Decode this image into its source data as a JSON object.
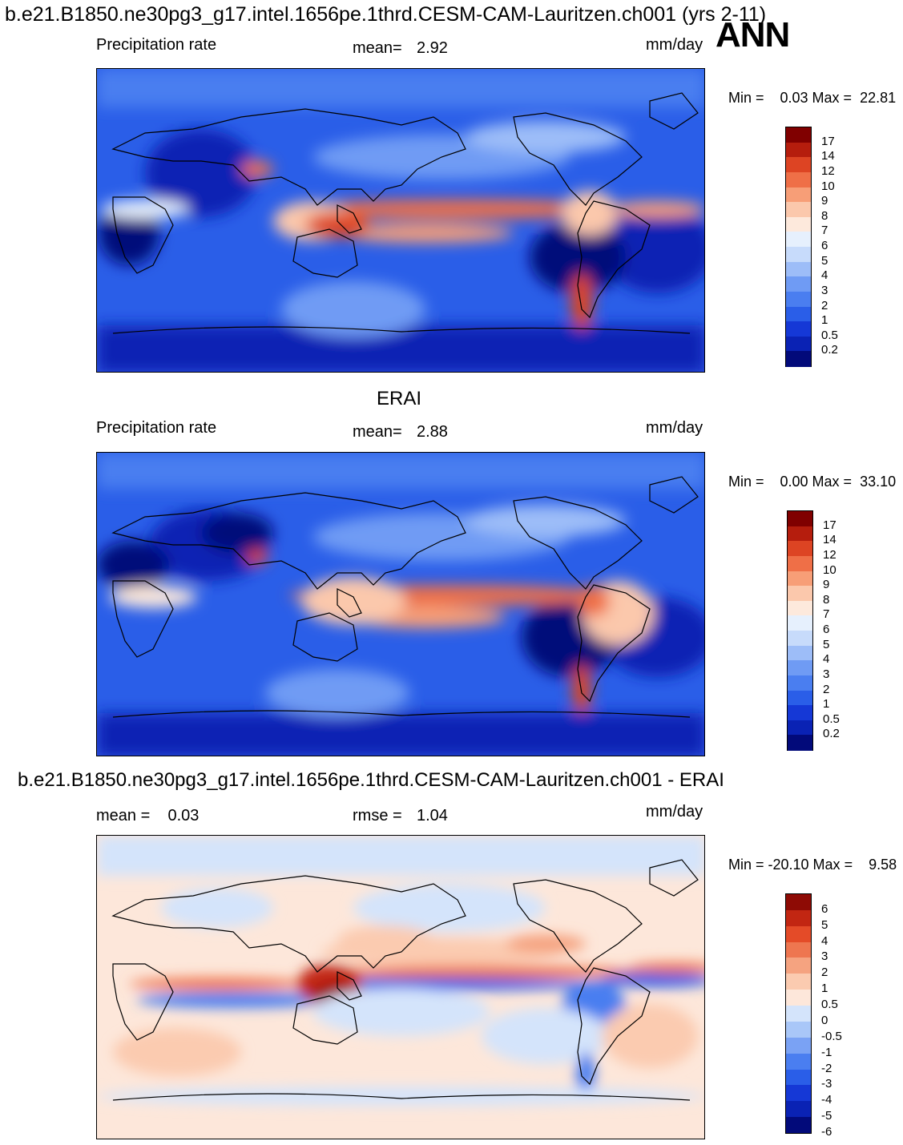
{
  "header": {
    "title": "b.e21.B1850.ne30pg3_g17.intel.1656pe.1thrd.CESM-CAM-Lauritzen.ch001 (yrs 2-11)",
    "season": "ANN"
  },
  "chart_data": [
    {
      "type": "heatmap",
      "title": "",
      "left_label": "Precipitation rate",
      "stat_label": "mean=",
      "stat_value": "2.92",
      "units": "mm/day",
      "minmax": "Min =    0.03 Max =  22.81",
      "colorbar_levels": [
        "0.2",
        "0.5",
        "1",
        "2",
        "3",
        "4",
        "5",
        "6",
        "7",
        "8",
        "9",
        "10",
        "12",
        "14",
        "17"
      ],
      "colorbar_colors": [
        "#020a7a",
        "#0a22b4",
        "#1538d6",
        "#2a5ee8",
        "#4a7ef0",
        "#6f9bf4",
        "#9dbdf8",
        "#c7dbfb",
        "#e6f0fd",
        "#fde9dc",
        "#fbc8ac",
        "#f79e77",
        "#ef6f47",
        "#dd4423",
        "#b51d0d",
        "#800000"
      ]
    },
    {
      "type": "heatmap",
      "title": "ERAI",
      "left_label": "Precipitation rate",
      "stat_label": "mean=",
      "stat_value": "2.88",
      "units": "mm/day",
      "minmax": "Min =    0.00 Max =  33.10",
      "colorbar_levels": [
        "0.2",
        "0.5",
        "1",
        "2",
        "3",
        "4",
        "5",
        "6",
        "7",
        "8",
        "9",
        "10",
        "12",
        "14",
        "17"
      ],
      "colorbar_colors": [
        "#020a7a",
        "#0a22b4",
        "#1538d6",
        "#2a5ee8",
        "#4a7ef0",
        "#6f9bf4",
        "#9dbdf8",
        "#c7dbfb",
        "#e6f0fd",
        "#fde9dc",
        "#fbc8ac",
        "#f79e77",
        "#ef6f47",
        "#dd4423",
        "#b51d0d",
        "#800000"
      ]
    },
    {
      "type": "heatmap",
      "title": "b.e21.B1850.ne30pg3_g17.intel.1656pe.1thrd.CESM-CAM-Lauritzen.ch001 - ERAI",
      "left_label": "mean =    0.03",
      "stat_label": "rmse =",
      "stat_value": "1.04",
      "units": "mm/day",
      "minmax": "Min = -20.10 Max =    9.58",
      "colorbar_levels": [
        "-6",
        "-5",
        "-4",
        "-3",
        "-2",
        "-1",
        "-0.5",
        "0",
        "0.5",
        "1",
        "2",
        "3",
        "4",
        "5",
        "6"
      ],
      "colorbar_colors": [
        "#020a7a",
        "#0a22b4",
        "#1538d6",
        "#2a5ee8",
        "#4a7ef0",
        "#7aa2f4",
        "#a9c7f8",
        "#d4e4fb",
        "#fde7da",
        "#fbcbb0",
        "#f5a380",
        "#ee7650",
        "#e44b28",
        "#c22612",
        "#8e0b05"
      ]
    }
  ]
}
